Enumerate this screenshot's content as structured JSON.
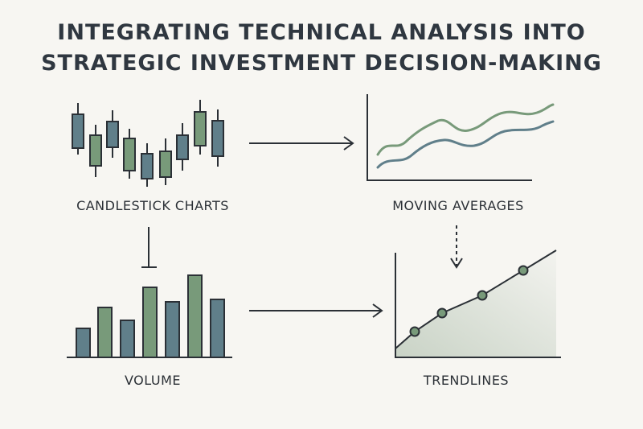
{
  "title": {
    "line1": "INTEGRATING TECHNICAL ANALYSIS INTO",
    "line2": "STRATEGIC INVESTMENT DECISION-MAKING"
  },
  "panels": {
    "candlestick": {
      "label": "CANDLESTICK CHARTS"
    },
    "moving_averages": {
      "label": "MOVING AVERAGES"
    },
    "volume": {
      "label": "VOLUME"
    },
    "trendlines": {
      "label": "TRENDLINES"
    }
  },
  "colors": {
    "background": "#f7f6f2",
    "green": "#789a7a",
    "slate": "#607f8a",
    "ink": "#2b3036"
  }
}
